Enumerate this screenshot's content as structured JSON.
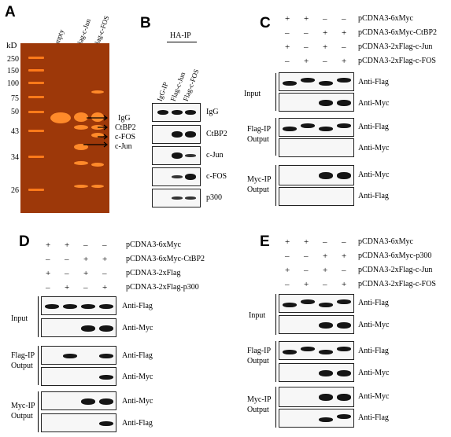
{
  "panelA": {
    "letter": "A",
    "kd_label": "kD",
    "lane_headers": [
      "Empty",
      "Flag-c-Jun",
      "Flag-c-FOS"
    ],
    "markers": [
      "250",
      "150",
      "100",
      "75",
      "50",
      "43",
      "34",
      "26"
    ],
    "band_labels": [
      "IgG",
      "CtBP2",
      "c-FOS",
      "c-Jun"
    ]
  },
  "panelB": {
    "letter": "B",
    "ip_title": "HA-IP",
    "lane_headers": [
      "IgG-IP",
      "Flag-c-Jun",
      "Flag-c-FOS"
    ],
    "rows": [
      "IgG",
      "CtBP2",
      "c-Jun",
      "c-FOS",
      "p300"
    ]
  },
  "panelC": {
    "letter": "C",
    "conditions": [
      {
        "label": "pCDNA3-6xMyc",
        "signs": [
          "+",
          "+",
          "–",
          "–"
        ]
      },
      {
        "label": "pCDNA3-6xMyc-CtBP2",
        "signs": [
          "–",
          "–",
          "+",
          "+"
        ]
      },
      {
        "label": "pCDNA3-2xFlag-c-Jun",
        "signs": [
          "+",
          "–",
          "+",
          "–"
        ]
      },
      {
        "label": "pCDNA3-2xFlag-c-FOS",
        "signs": [
          "–",
          "+",
          "–",
          "+"
        ]
      }
    ],
    "groups": [
      {
        "name": "Input",
        "rows": [
          "Anti-Flag",
          "Anti-Myc"
        ]
      },
      {
        "name": "Flag-IP\nOutput",
        "rows": [
          "Anti-Flag",
          "Anti-Myc"
        ]
      },
      {
        "name": "Myc-IP\nOutput",
        "rows": [
          "Anti-Myc",
          "Anti-Flag"
        ]
      }
    ]
  },
  "panelD": {
    "letter": "D",
    "conditions": [
      {
        "label": "pCDNA3-6xMyc",
        "signs": [
          "+",
          "+",
          "–",
          "–"
        ]
      },
      {
        "label": "pCDNA3-6xMyc-CtBP2",
        "signs": [
          "–",
          "–",
          "+",
          "+"
        ]
      },
      {
        "label": "pCDNA3-2xFlag",
        "signs": [
          "+",
          "–",
          "+",
          "–"
        ]
      },
      {
        "label": "pCDNA3-2xFlag-p300",
        "signs": [
          "–",
          "+",
          "–",
          "+"
        ]
      }
    ],
    "groups": [
      {
        "name": "Input",
        "rows": [
          "Anti-Flag",
          "Anti-Myc"
        ]
      },
      {
        "name": "Flag-IP\nOutput",
        "rows": [
          "Anti-Flag",
          "Anti-Myc"
        ]
      },
      {
        "name": "Myc-IP\nOutput",
        "rows": [
          "Anti-Myc",
          "Anti-Flag"
        ]
      }
    ]
  },
  "panelE": {
    "letter": "E",
    "conditions": [
      {
        "label": "pCDNA3-6xMyc",
        "signs": [
          "+",
          "+",
          "–",
          "–"
        ]
      },
      {
        "label": "pCDNA3-6xMyc-p300",
        "signs": [
          "–",
          "–",
          "+",
          "+"
        ]
      },
      {
        "label": "pCDNA3-2xFlag-c-Jun",
        "signs": [
          "+",
          "–",
          "+",
          "–"
        ]
      },
      {
        "label": "pCDNA3-2xFlag-c-FOS",
        "signs": [
          "–",
          "+",
          "–",
          "+"
        ]
      }
    ],
    "groups": [
      {
        "name": "Input",
        "rows": [
          "Anti-Flag",
          "Anti-Myc"
        ]
      },
      {
        "name": "Flag-IP\nOutput",
        "rows": [
          "Anti-Flag",
          "Anti-Myc"
        ]
      },
      {
        "name": "Myc-IP\nOutput",
        "rows": [
          "Anti-Myc",
          "Anti-Flag"
        ]
      }
    ]
  },
  "colors": {
    "gel_background": "#9d3809",
    "gel_band": "#ff8a2a",
    "blot_band": "#151515"
  }
}
